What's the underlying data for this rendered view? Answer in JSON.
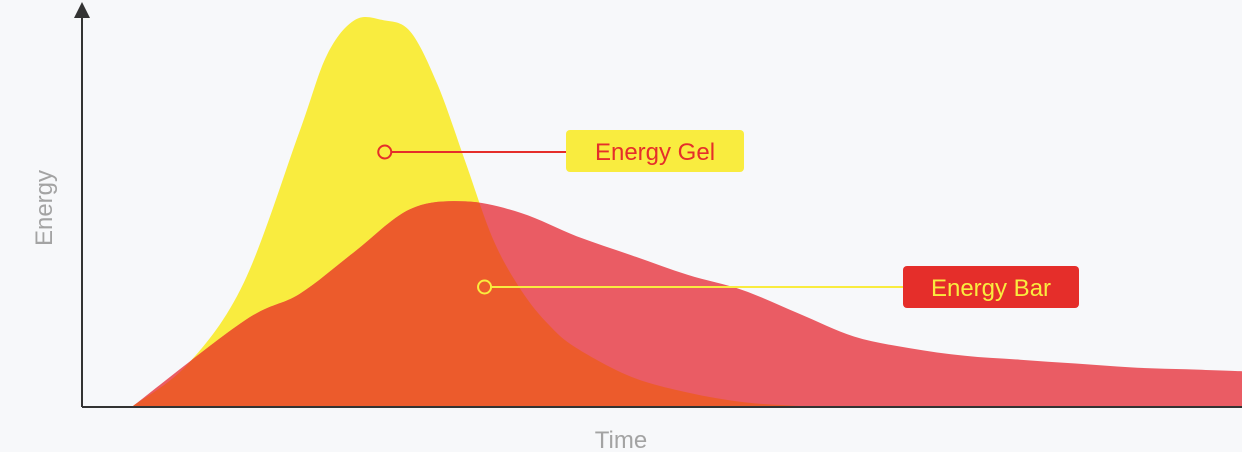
{
  "chart_data": {
    "type": "area",
    "title": "",
    "xlabel": "Time",
    "ylabel": "Energy",
    "xlim": [
      0,
      1
    ],
    "ylim": [
      0,
      1
    ],
    "grid": false,
    "legend": "none",
    "series": [
      {
        "name": "Energy Gel",
        "color": "#f9ec3f",
        "x": [
          0.0,
          0.05,
          0.1,
          0.15,
          0.175,
          0.2,
          0.225,
          0.25,
          0.275,
          0.3,
          0.325,
          0.35,
          0.375,
          0.4,
          0.45,
          0.5,
          0.55,
          0.6
        ],
        "values": [
          0.0,
          0.11,
          0.32,
          0.71,
          0.91,
          1.0,
          1.0,
          0.97,
          0.83,
          0.63,
          0.43,
          0.3,
          0.21,
          0.15,
          0.075,
          0.035,
          0.01,
          0.0
        ]
      },
      {
        "name": "Energy Bar",
        "color": "#ea5c64",
        "x": [
          0.0,
          0.1,
          0.15,
          0.2,
          0.25,
          0.3,
          0.35,
          0.4,
          0.45,
          0.5,
          0.55,
          0.6,
          0.65,
          0.7,
          0.75,
          0.8,
          0.85,
          0.9,
          0.95,
          1.0
        ],
        "values": [
          0.0,
          0.22,
          0.29,
          0.4,
          0.51,
          0.53,
          0.5,
          0.44,
          0.39,
          0.34,
          0.3,
          0.24,
          0.18,
          0.15,
          0.13,
          0.12,
          0.11,
          0.1,
          0.095,
          0.09
        ]
      }
    ],
    "overlap_color": "#ec5b2c",
    "annotations": [
      {
        "text": "Energy Gel",
        "series": "Energy Gel",
        "text_color": "#e52e2a",
        "box_color": "#f9ec3f",
        "line_color": "#e52e2a"
      },
      {
        "text": "Energy Bar",
        "series": "Energy Bar",
        "text_color": "#f9ec3f",
        "box_color": "#e52e2a",
        "line_color": "#f9ec3f"
      }
    ],
    "axis_color": "#333333",
    "label_color": "#a3a3a3"
  }
}
